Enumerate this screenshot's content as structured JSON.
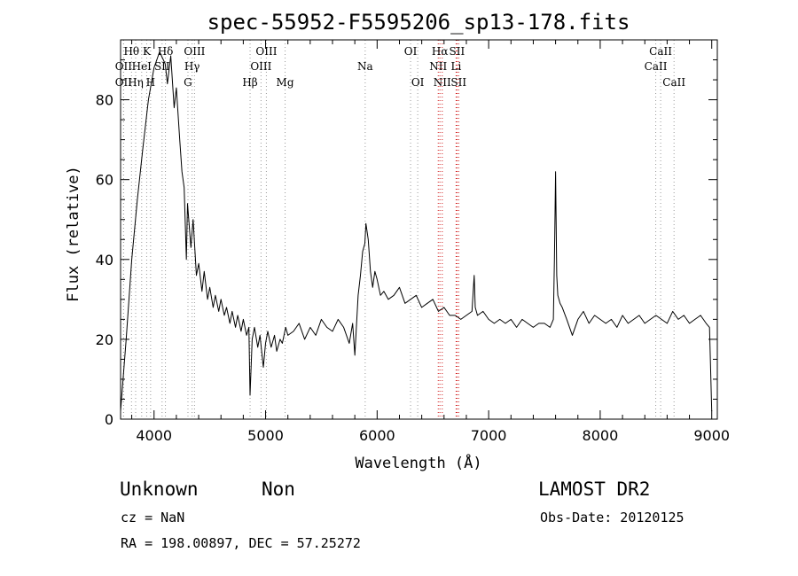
{
  "chart_data": {
    "type": "line",
    "title": "spec-55952-F5595206_sp13-178.fits",
    "xlabel": "Wavelength (Å)",
    "ylabel": "Flux (relative)",
    "xlim": [
      3700,
      9050
    ],
    "ylim": [
      0,
      95
    ],
    "xticks": [
      4000,
      5000,
      6000,
      7000,
      8000,
      9000
    ],
    "yticks": [
      0,
      20,
      40,
      60,
      80
    ],
    "grid": false,
    "series": [
      {
        "x": [
          3700,
          3750,
          3800,
          3850,
          3900,
          3950,
          4000,
          4050,
          4100,
          4120,
          4150,
          4180,
          4200,
          4230,
          4250,
          4270,
          4290,
          4300,
          4330,
          4350,
          4380,
          4400,
          4430,
          4450,
          4480,
          4500,
          4530,
          4550,
          4580,
          4600,
          4630,
          4650,
          4680,
          4700,
          4730,
          4750,
          4780,
          4800,
          4830,
          4850,
          4861,
          4880,
          4900,
          4930,
          4950,
          4980,
          5000,
          5020,
          5050,
          5080,
          5100,
          5130,
          5150,
          5180,
          5200,
          5250,
          5300,
          5350,
          5400,
          5450,
          5500,
          5550,
          5600,
          5650,
          5700,
          5750,
          5780,
          5800,
          5830,
          5850,
          5870,
          5890,
          5900,
          5920,
          5940,
          5960,
          5980,
          6000,
          6030,
          6060,
          6100,
          6150,
          6200,
          6250,
          6300,
          6350,
          6400,
          6450,
          6500,
          6550,
          6600,
          6650,
          6700,
          6750,
          6800,
          6850,
          6870,
          6880,
          6900,
          6950,
          7000,
          7050,
          7100,
          7150,
          7200,
          7250,
          7300,
          7350,
          7400,
          7450,
          7500,
          7550,
          7580,
          7590,
          7600,
          7610,
          7620,
          7640,
          7660,
          7700,
          7750,
          7800,
          7850,
          7900,
          7950,
          8000,
          8050,
          8100,
          8150,
          8200,
          8250,
          8300,
          8350,
          8400,
          8450,
          8500,
          8550,
          8600,
          8650,
          8700,
          8750,
          8800,
          8850,
          8900,
          8950,
          8980,
          9000
        ],
        "y": [
          2,
          20,
          40,
          55,
          68,
          80,
          88,
          92,
          89,
          84,
          91,
          78,
          83,
          70,
          62,
          58,
          40,
          54,
          43,
          50,
          36,
          39,
          32,
          37,
          30,
          33,
          28,
          31,
          27,
          30,
          26,
          28,
          24,
          27,
          23,
          26,
          22,
          25,
          21,
          23,
          6,
          20,
          23,
          18,
          21,
          13,
          19,
          22,
          18,
          21,
          17,
          20,
          19,
          23,
          21,
          22,
          24,
          20,
          23,
          21,
          25,
          23,
          22,
          25,
          23,
          19,
          24,
          16,
          31,
          36,
          42,
          44,
          49,
          45,
          37,
          33,
          37,
          35,
          31,
          32,
          30,
          31,
          33,
          29,
          30,
          31,
          28,
          29,
          30,
          27,
          28,
          26,
          26,
          25,
          26,
          27,
          36,
          28,
          26,
          27,
          25,
          24,
          25,
          24,
          25,
          23,
          25,
          24,
          23,
          24,
          24,
          23,
          25,
          40,
          62,
          36,
          31,
          29,
          28,
          25,
          21,
          25,
          27,
          24,
          26,
          25,
          24,
          25,
          23,
          26,
          24,
          25,
          26,
          24,
          25,
          26,
          25,
          24,
          27,
          25,
          26,
          24,
          25,
          26,
          24,
          23,
          2
        ]
      }
    ],
    "spectral_lines": [
      {
        "name": "Hθ",
        "wave": 3798,
        "row": 0,
        "color": "#9a9a9a"
      },
      {
        "name": "K",
        "wave": 3934,
        "row": 0,
        "color": "#9a9a9a"
      },
      {
        "name": "H",
        "wave": 3969,
        "row": 2,
        "color": "#9a9a9a"
      },
      {
        "name": "Hδ",
        "wave": 4102,
        "row": 0,
        "color": "#9a9a9a"
      },
      {
        "name": "OII",
        "wave": 3727,
        "row": 1,
        "color": "#9a9a9a"
      },
      {
        "name": "HeI",
        "wave": 3889,
        "row": 1,
        "color": "#9a9a9a"
      },
      {
        "name": "SII",
        "wave": 4072,
        "row": 1,
        "color": "#9a9a9a"
      },
      {
        "name": "OII",
        "wave": 3727,
        "row": 2,
        "color": "#9a9a9a"
      },
      {
        "name": "Hη",
        "wave": 3835,
        "row": 2,
        "color": "#9a9a9a"
      },
      {
        "name": "OIII",
        "wave": 4363,
        "row": 0,
        "color": "#9a9a9a"
      },
      {
        "name": "Hγ",
        "wave": 4341,
        "row": 1,
        "color": "#9a9a9a"
      },
      {
        "name": "G",
        "wave": 4304,
        "row": 2,
        "color": "#9a9a9a"
      },
      {
        "name": "Hβ",
        "wave": 4861,
        "row": 2,
        "color": "#9a9a9a"
      },
      {
        "name": "OIII",
        "wave": 5007,
        "row": 0,
        "color": "#9a9a9a"
      },
      {
        "name": "OIII",
        "wave": 4959,
        "row": 1,
        "color": "#9a9a9a"
      },
      {
        "name": "Mg",
        "wave": 5175,
        "row": 2,
        "color": "#9a9a9a"
      },
      {
        "name": "Na",
        "wave": 5893,
        "row": 1,
        "color": "#9a9a9a"
      },
      {
        "name": "OI",
        "wave": 6300,
        "row": 0,
        "color": "#9a9a9a"
      },
      {
        "name": "OI",
        "wave": 6364,
        "row": 2,
        "color": "#9a9a9a"
      },
      {
        "name": "Hα",
        "wave": 6563,
        "row": 0,
        "color": "#d01818"
      },
      {
        "name": "SII",
        "wave": 6716,
        "row": 0,
        "color": "#d01818"
      },
      {
        "name": "NII",
        "wave": 6548,
        "row": 1,
        "color": "#d01818"
      },
      {
        "name": "Li",
        "wave": 6708,
        "row": 1,
        "color": "#d01818"
      },
      {
        "name": "NII",
        "wave": 6584,
        "row": 2,
        "color": "#d01818"
      },
      {
        "name": "SII",
        "wave": 6731,
        "row": 2,
        "color": "#d01818"
      },
      {
        "name": "CaII",
        "wave": 8542,
        "row": 0,
        "color": "#9a9a9a"
      },
      {
        "name": "CaII",
        "wave": 8498,
        "row": 1,
        "color": "#9a9a9a"
      },
      {
        "name": "CaII",
        "wave": 8662,
        "row": 2,
        "color": "#9a9a9a"
      }
    ]
  },
  "info": {
    "class": "Unknown",
    "subclass": "Non",
    "cz": "cz = NaN",
    "coords": "RA = 198.00897, DEC =  57.25272",
    "survey": "LAMOST DR2",
    "obs_date": "Obs-Date: 20120125"
  }
}
